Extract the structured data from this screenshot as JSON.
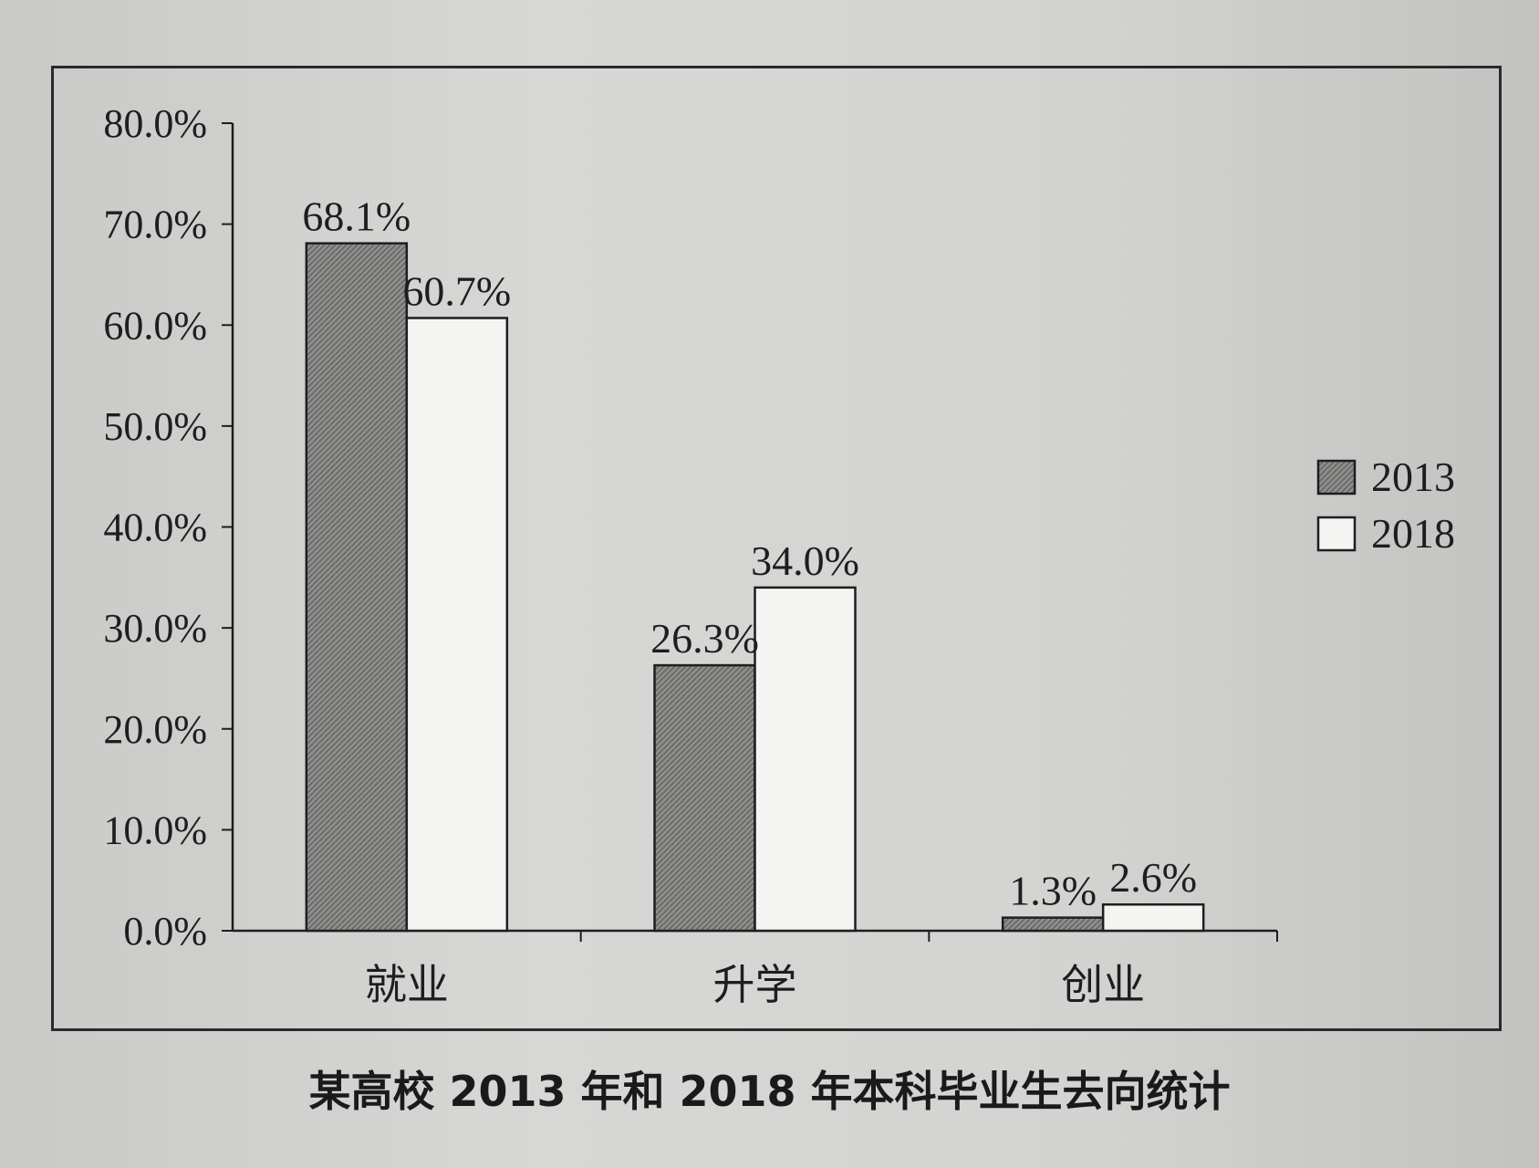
{
  "caption": "某高校 2013 年和 2018 年本科毕业生去向统计",
  "chart_data": {
    "type": "bar",
    "title": "",
    "xlabel": "",
    "ylabel": "",
    "categories": [
      "就业",
      "升学",
      "创业"
    ],
    "series": [
      {
        "name": "2013",
        "values": [
          68.1,
          26.3,
          1.3
        ],
        "labels": [
          "68.1%",
          "26.3%",
          "1.3%"
        ],
        "fill": "hatched-gray"
      },
      {
        "name": "2018",
        "values": [
          60.7,
          34.0,
          2.6
        ],
        "labels": [
          "60.7%",
          "34.0%",
          "2.6%"
        ],
        "fill": "white"
      }
    ],
    "ylim": [
      0,
      80
    ],
    "yticks": [
      "0.0%",
      "10.0%",
      "20.0%",
      "30.0%",
      "40.0%",
      "50.0%",
      "60.0%",
      "70.0%",
      "80.0%"
    ],
    "grid": false,
    "legend_position": "right",
    "colors": {
      "bar_2013": "#8c8c8a",
      "bar_2018": "#f4f4f2",
      "stroke": "#1e1e1e"
    }
  }
}
